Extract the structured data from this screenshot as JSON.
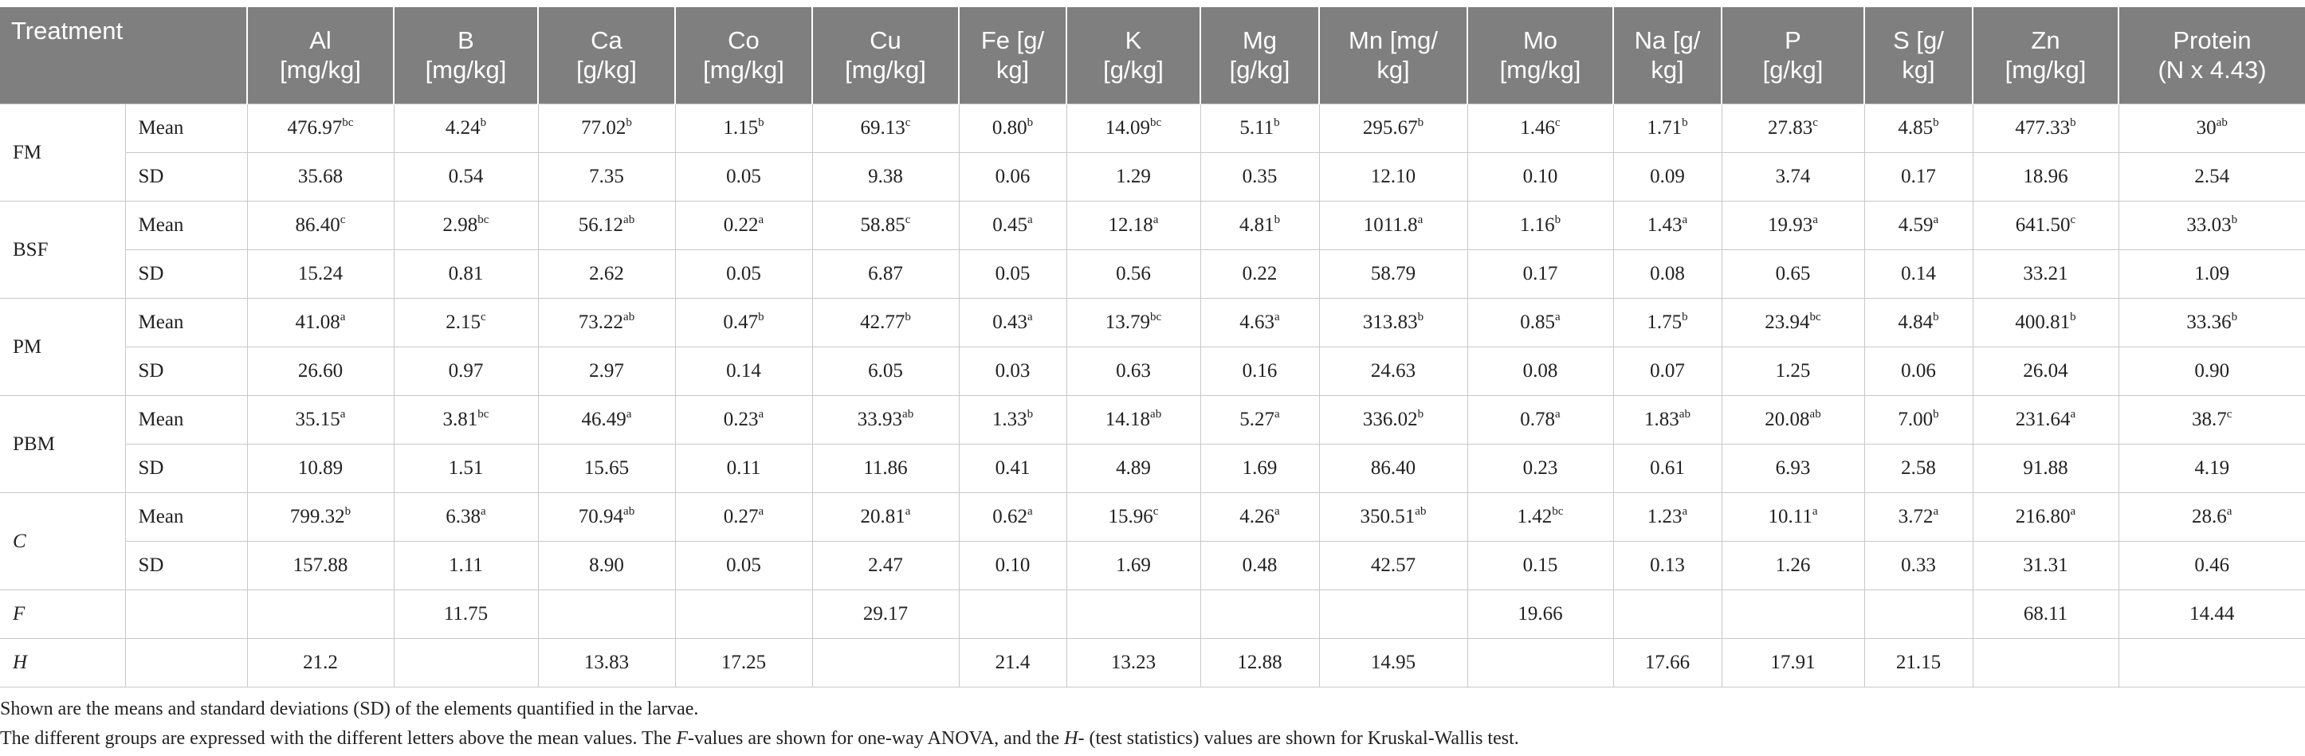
{
  "header": {
    "treatment": "Treatment",
    "columns": [
      {
        "lines": [
          "Al",
          "[mg/kg]"
        ]
      },
      {
        "lines": [
          "B",
          "[mg/kg]"
        ]
      },
      {
        "lines": [
          "Ca",
          "[g/kg]"
        ]
      },
      {
        "lines": [
          "Co",
          "[mg/kg]"
        ]
      },
      {
        "lines": [
          "Cu",
          "[mg/kg]"
        ]
      },
      {
        "lines": [
          "Fe [g/",
          "kg]"
        ]
      },
      {
        "lines": [
          "K",
          "[g/kg]"
        ]
      },
      {
        "lines": [
          "Mg",
          "[g/kg]"
        ]
      },
      {
        "lines": [
          "Mn [mg/",
          "kg]"
        ]
      },
      {
        "lines": [
          "Mo",
          "[mg/kg]"
        ]
      },
      {
        "lines": [
          "Na [g/",
          "kg]"
        ]
      },
      {
        "lines": [
          "P",
          "[g/kg]"
        ]
      },
      {
        "lines": [
          "S [g/",
          "kg]"
        ]
      },
      {
        "lines": [
          "Zn",
          "[mg/kg]"
        ]
      },
      {
        "lines": [
          "Protein",
          "(N x 4.43)"
        ]
      }
    ]
  },
  "groups": [
    {
      "name": "FM",
      "italic": false,
      "rows": [
        {
          "label": "Mean",
          "cells": [
            {
              "value": "476.97",
              "sup": "bc"
            },
            {
              "value": "4.24",
              "sup": "b"
            },
            {
              "value": "77.02",
              "sup": "b"
            },
            {
              "value": "1.15",
              "sup": "b"
            },
            {
              "value": "69.13",
              "sup": "c"
            },
            {
              "value": "0.80",
              "sup": "b"
            },
            {
              "value": "14.09",
              "sup": "bc"
            },
            {
              "value": "5.11",
              "sup": "b"
            },
            {
              "value": "295.67",
              "sup": "b"
            },
            {
              "value": "1.46",
              "sup": "c"
            },
            {
              "value": "1.71",
              "sup": "b"
            },
            {
              "value": "27.83",
              "sup": "c"
            },
            {
              "value": "4.85",
              "sup": "b"
            },
            {
              "value": "477.33",
              "sup": "b"
            },
            {
              "value": "30",
              "sup": "ab"
            }
          ]
        },
        {
          "label": "SD",
          "cells": [
            {
              "value": "35.68"
            },
            {
              "value": "0.54"
            },
            {
              "value": "7.35"
            },
            {
              "value": "0.05"
            },
            {
              "value": "9.38"
            },
            {
              "value": "0.06"
            },
            {
              "value": "1.29"
            },
            {
              "value": "0.35"
            },
            {
              "value": "12.10"
            },
            {
              "value": "0.10"
            },
            {
              "value": "0.09"
            },
            {
              "value": "3.74"
            },
            {
              "value": "0.17"
            },
            {
              "value": "18.96"
            },
            {
              "value": "2.54"
            }
          ]
        }
      ]
    },
    {
      "name": "BSF",
      "italic": false,
      "rows": [
        {
          "label": "Mean",
          "cells": [
            {
              "value": "86.40",
              "sup": "c"
            },
            {
              "value": "2.98",
              "sup": "bc"
            },
            {
              "value": "56.12",
              "sup": "ab"
            },
            {
              "value": "0.22",
              "sup": "a"
            },
            {
              "value": "58.85",
              "sup": "c"
            },
            {
              "value": "0.45",
              "sup": "a"
            },
            {
              "value": "12.18",
              "sup": "a"
            },
            {
              "value": "4.81",
              "sup": "b"
            },
            {
              "value": "1011.8",
              "sup": "a"
            },
            {
              "value": "1.16",
              "sup": "b"
            },
            {
              "value": "1.43",
              "sup": "a"
            },
            {
              "value": "19.93",
              "sup": "a"
            },
            {
              "value": "4.59",
              "sup": "a"
            },
            {
              "value": "641.50",
              "sup": "c"
            },
            {
              "value": "33.03",
              "sup": "b"
            }
          ]
        },
        {
          "label": "SD",
          "cells": [
            {
              "value": "15.24"
            },
            {
              "value": "0.81"
            },
            {
              "value": "2.62"
            },
            {
              "value": "0.05"
            },
            {
              "value": "6.87"
            },
            {
              "value": "0.05"
            },
            {
              "value": "0.56"
            },
            {
              "value": "0.22"
            },
            {
              "value": "58.79"
            },
            {
              "value": "0.17"
            },
            {
              "value": "0.08"
            },
            {
              "value": "0.65"
            },
            {
              "value": "0.14"
            },
            {
              "value": "33.21"
            },
            {
              "value": "1.09"
            }
          ]
        }
      ]
    },
    {
      "name": "PM",
      "italic": false,
      "rows": [
        {
          "label": "Mean",
          "cells": [
            {
              "value": "41.08",
              "sup": "a"
            },
            {
              "value": "2.15",
              "sup": "c"
            },
            {
              "value": "73.22",
              "sup": "ab"
            },
            {
              "value": "0.47",
              "sup": "b"
            },
            {
              "value": "42.77",
              "sup": "b"
            },
            {
              "value": "0.43",
              "sup": "a"
            },
            {
              "value": "13.79",
              "sup": "bc"
            },
            {
              "value": "4.63",
              "sup": "a"
            },
            {
              "value": "313.83",
              "sup": "b"
            },
            {
              "value": "0.85",
              "sup": "a"
            },
            {
              "value": "1.75",
              "sup": "b"
            },
            {
              "value": "23.94",
              "sup": "bc"
            },
            {
              "value": "4.84",
              "sup": "b"
            },
            {
              "value": "400.81",
              "sup": "b"
            },
            {
              "value": "33.36",
              "sup": "b"
            }
          ]
        },
        {
          "label": "SD",
          "cells": [
            {
              "value": "26.60"
            },
            {
              "value": "0.97"
            },
            {
              "value": "2.97"
            },
            {
              "value": "0.14"
            },
            {
              "value": "6.05"
            },
            {
              "value": "0.03"
            },
            {
              "value": "0.63"
            },
            {
              "value": "0.16"
            },
            {
              "value": "24.63"
            },
            {
              "value": "0.08"
            },
            {
              "value": "0.07"
            },
            {
              "value": "1.25"
            },
            {
              "value": "0.06"
            },
            {
              "value": "26.04"
            },
            {
              "value": "0.90"
            }
          ]
        }
      ]
    },
    {
      "name": "PBM",
      "italic": false,
      "rows": [
        {
          "label": "Mean",
          "cells": [
            {
              "value": "35.15",
              "sup": "a"
            },
            {
              "value": "3.81",
              "sup": "bc"
            },
            {
              "value": "46.49",
              "sup": "a"
            },
            {
              "value": "0.23",
              "sup": "a"
            },
            {
              "value": "33.93",
              "sup": "ab"
            },
            {
              "value": "1.33",
              "sup": "b"
            },
            {
              "value": "14.18",
              "sup": "ab"
            },
            {
              "value": "5.27",
              "sup": "a"
            },
            {
              "value": "336.02",
              "sup": "b"
            },
            {
              "value": "0.78",
              "sup": "a"
            },
            {
              "value": "1.83",
              "sup": "ab"
            },
            {
              "value": "20.08",
              "sup": "ab"
            },
            {
              "value": "7.00",
              "sup": "b"
            },
            {
              "value": "231.64",
              "sup": "a"
            },
            {
              "value": "38.7",
              "sup": "c"
            }
          ]
        },
        {
          "label": "SD",
          "cells": [
            {
              "value": "10.89"
            },
            {
              "value": "1.51"
            },
            {
              "value": "15.65"
            },
            {
              "value": "0.11"
            },
            {
              "value": "11.86"
            },
            {
              "value": "0.41"
            },
            {
              "value": "4.89"
            },
            {
              "value": "1.69"
            },
            {
              "value": "86.40"
            },
            {
              "value": "0.23"
            },
            {
              "value": "0.61"
            },
            {
              "value": "6.93"
            },
            {
              "value": "2.58"
            },
            {
              "value": "91.88"
            },
            {
              "value": "4.19"
            }
          ]
        }
      ]
    },
    {
      "name": "C",
      "italic": true,
      "rows": [
        {
          "label": "Mean",
          "cells": [
            {
              "value": "799.32",
              "sup": "b"
            },
            {
              "value": "6.38",
              "sup": "a"
            },
            {
              "value": "70.94",
              "sup": "ab"
            },
            {
              "value": "0.27",
              "sup": "a"
            },
            {
              "value": "20.81",
              "sup": "a"
            },
            {
              "value": "0.62",
              "sup": "a"
            },
            {
              "value": "15.96",
              "sup": "c"
            },
            {
              "value": "4.26",
              "sup": "a"
            },
            {
              "value": "350.51",
              "sup": "ab"
            },
            {
              "value": "1.42",
              "sup": "bc"
            },
            {
              "value": "1.23",
              "sup": "a"
            },
            {
              "value": "10.11",
              "sup": "a"
            },
            {
              "value": "3.72",
              "sup": "a"
            },
            {
              "value": "216.80",
              "sup": "a"
            },
            {
              "value": "28.6",
              "sup": "a"
            }
          ]
        },
        {
          "label": "SD",
          "cells": [
            {
              "value": "157.88"
            },
            {
              "value": "1.11"
            },
            {
              "value": "8.90"
            },
            {
              "value": "0.05"
            },
            {
              "value": "2.47"
            },
            {
              "value": "0.10"
            },
            {
              "value": "1.69"
            },
            {
              "value": "0.48"
            },
            {
              "value": "42.57"
            },
            {
              "value": "0.15"
            },
            {
              "value": "0.13"
            },
            {
              "value": "1.26"
            },
            {
              "value": "0.33"
            },
            {
              "value": "31.31"
            },
            {
              "value": "0.46"
            }
          ]
        }
      ]
    }
  ],
  "stats": [
    {
      "label": "F",
      "italic": true,
      "cells": [
        null,
        "11.75",
        null,
        null,
        "29.17",
        null,
        null,
        null,
        null,
        "19.66",
        null,
        null,
        null,
        "68.11",
        "14.44"
      ]
    },
    {
      "label": "H",
      "italic": true,
      "cells": [
        "21.2",
        null,
        "13.83",
        "17.25",
        null,
        "21.4",
        "13.23",
        "12.88",
        "14.95",
        null,
        "17.66",
        "17.91",
        "21.15",
        null,
        null
      ]
    }
  ],
  "footnotes": [
    [
      {
        "text": "Shown are the means and standard deviations (SD) of the elements quantified in the larvae."
      }
    ],
    [
      {
        "text": "The different groups are expressed with the different letters above the mean values. The "
      },
      {
        "text": "F",
        "italic": true
      },
      {
        "text": "-values are shown for one-way ANOVA, and the "
      },
      {
        "text": "H",
        "italic": true
      },
      {
        "text": "- (test statistics) values are shown for Kruskal-Wallis test."
      }
    ]
  ]
}
